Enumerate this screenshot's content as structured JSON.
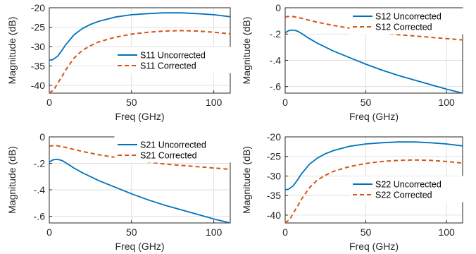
{
  "colors": {
    "uncorrected": "#0072bd",
    "corrected": "#d95319",
    "axes": "#262626",
    "grid": "#d9d9d9"
  },
  "chart_data": [
    {
      "type": "line",
      "xlabel": "Freq (GHz)",
      "ylabel": "Magnitude (dB)",
      "xlim": [
        0,
        110
      ],
      "ylim": [
        -42,
        -20
      ],
      "xticks": [
        0,
        50,
        100
      ],
      "yticks": [
        -20,
        -25,
        -30,
        -35,
        -40
      ],
      "grid": true,
      "legend_position": "middle-right",
      "series": [
        {
          "name": "S11 Uncorrected",
          "style": "solid",
          "x": [
            0,
            2,
            5,
            8,
            10,
            15,
            20,
            25,
            30,
            40,
            50,
            60,
            70,
            80,
            90,
            100,
            110
          ],
          "y": [
            -33.5,
            -33.4,
            -32.5,
            -30.8,
            -29.5,
            -27.0,
            -25.4,
            -24.3,
            -23.5,
            -22.4,
            -21.8,
            -21.5,
            -21.3,
            -21.3,
            -21.5,
            -21.8,
            -22.3
          ]
        },
        {
          "name": "S11 Corrected",
          "style": "dashed",
          "x": [
            0,
            3,
            5,
            8,
            10,
            15,
            20,
            25,
            30,
            40,
            50,
            60,
            70,
            80,
            90,
            100,
            110
          ],
          "y": [
            -42,
            -41.0,
            -39.5,
            -37.5,
            -36.0,
            -33.0,
            -31.0,
            -29.8,
            -28.8,
            -27.6,
            -26.8,
            -26.3,
            -26.0,
            -25.9,
            -26.0,
            -26.3,
            -26.7
          ]
        }
      ]
    },
    {
      "type": "line",
      "xlabel": "Freq (GHz)",
      "ylabel": "Magnitude (dB)",
      "xlim": [
        0,
        110
      ],
      "ylim": [
        -0.65,
        0
      ],
      "xticks": [
        0,
        50,
        100
      ],
      "yticks": [
        0,
        -0.2,
        -0.4,
        -0.6
      ],
      "grid": true,
      "legend_position": "top-right",
      "series": [
        {
          "name": "S12 Uncorrected",
          "style": "solid",
          "x": [
            0,
            2,
            4,
            6,
            8,
            10,
            15,
            20,
            30,
            40,
            50,
            60,
            70,
            80,
            90,
            100,
            110
          ],
          "y": [
            -0.19,
            -0.175,
            -0.17,
            -0.172,
            -0.18,
            -0.195,
            -0.235,
            -0.27,
            -0.33,
            -0.38,
            -0.43,
            -0.475,
            -0.515,
            -0.55,
            -0.585,
            -0.62,
            -0.65
          ]
        },
        {
          "name": "S12 Corrected",
          "style": "dashed",
          "x": [
            0,
            3,
            5,
            10,
            15,
            20,
            30,
            40,
            50,
            60,
            70,
            80,
            90,
            100,
            110
          ],
          "y": [
            -0.07,
            -0.065,
            -0.067,
            -0.08,
            -0.095,
            -0.11,
            -0.135,
            -0.155,
            -0.175,
            -0.19,
            -0.205,
            -0.215,
            -0.225,
            -0.235,
            -0.245
          ]
        }
      ]
    },
    {
      "type": "line",
      "xlabel": "Freq (GHz)",
      "ylabel": "Magnitude (dB)",
      "xlim": [
        0,
        110
      ],
      "ylim": [
        -0.65,
        0
      ],
      "xticks": [
        0,
        50,
        100
      ],
      "yticks": [
        0,
        -0.2,
        -0.4,
        -0.6
      ],
      "grid": true,
      "legend_position": "top-right",
      "series": [
        {
          "name": "S21 Uncorrected",
          "style": "solid",
          "x": [
            0,
            2,
            4,
            6,
            8,
            10,
            15,
            20,
            30,
            40,
            50,
            60,
            70,
            80,
            90,
            100,
            110
          ],
          "y": [
            -0.19,
            -0.175,
            -0.17,
            -0.172,
            -0.18,
            -0.195,
            -0.235,
            -0.27,
            -0.33,
            -0.38,
            -0.43,
            -0.475,
            -0.515,
            -0.55,
            -0.585,
            -0.62,
            -0.65
          ]
        },
        {
          "name": "S21 Corrected",
          "style": "dashed",
          "x": [
            0,
            3,
            5,
            10,
            15,
            20,
            30,
            40,
            50,
            60,
            70,
            80,
            90,
            100,
            110
          ],
          "y": [
            -0.07,
            -0.065,
            -0.067,
            -0.08,
            -0.095,
            -0.11,
            -0.135,
            -0.155,
            -0.175,
            -0.19,
            -0.205,
            -0.215,
            -0.225,
            -0.235,
            -0.245
          ]
        }
      ]
    },
    {
      "type": "line",
      "xlabel": "Freq (GHz)",
      "ylabel": "Magnitude (dB)",
      "xlim": [
        0,
        110
      ],
      "ylim": [
        -42,
        -20
      ],
      "xticks": [
        0,
        50,
        100
      ],
      "yticks": [
        -20,
        -25,
        -30,
        -35,
        -40
      ],
      "grid": true,
      "legend_position": "bottom-right",
      "series": [
        {
          "name": "S22 Uncorrected",
          "style": "solid",
          "x": [
            0,
            2,
            5,
            8,
            10,
            15,
            20,
            25,
            30,
            40,
            50,
            60,
            70,
            80,
            90,
            100,
            110
          ],
          "y": [
            -33.5,
            -33.4,
            -32.5,
            -30.8,
            -29.5,
            -27.0,
            -25.4,
            -24.3,
            -23.5,
            -22.4,
            -21.8,
            -21.5,
            -21.3,
            -21.3,
            -21.5,
            -21.8,
            -22.3
          ]
        },
        {
          "name": "S22 Corrected",
          "style": "dashed",
          "x": [
            0,
            3,
            5,
            8,
            10,
            15,
            20,
            25,
            30,
            40,
            50,
            60,
            70,
            80,
            90,
            100,
            110
          ],
          "y": [
            -42,
            -41.0,
            -39.5,
            -37.5,
            -36.0,
            -33.0,
            -31.0,
            -29.8,
            -28.8,
            -27.6,
            -26.8,
            -26.3,
            -26.0,
            -25.9,
            -26.0,
            -26.3,
            -26.7
          ]
        }
      ]
    }
  ]
}
